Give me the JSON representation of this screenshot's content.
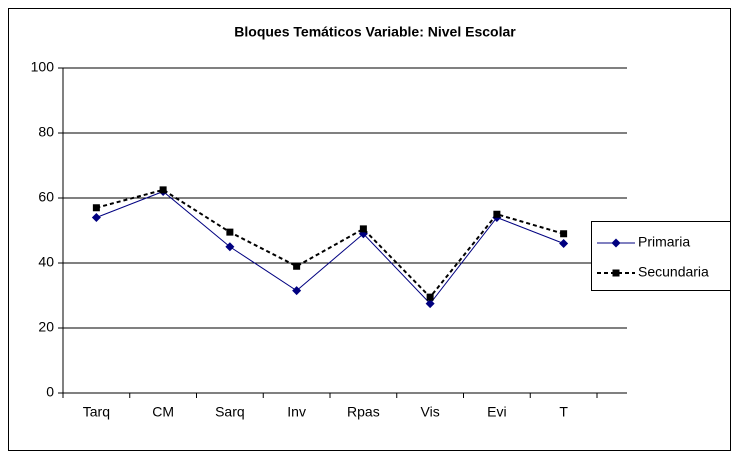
{
  "chart_data": {
    "type": "line",
    "title": "Bloques Temáticos   Variable: Nivel Escolar",
    "categories": [
      "Tarq",
      "CM",
      "Sarq",
      "Inv",
      "Rpas",
      "Vis",
      "Evi",
      "T"
    ],
    "series": [
      {
        "name": "Primaria",
        "color": "#000080",
        "dash": false,
        "marker": "diamond",
        "values": [
          54,
          62,
          45,
          31.5,
          49,
          27.5,
          54,
          46
        ]
      },
      {
        "name": "Secundaria",
        "color": "#000000",
        "dash": true,
        "marker": "square",
        "values": [
          57,
          62.5,
          49.5,
          39,
          50.5,
          29.5,
          55,
          49
        ]
      }
    ],
    "ylim": [
      0,
      100
    ],
    "yticks": [
      0,
      20,
      40,
      60,
      80,
      100
    ],
    "grid": true,
    "legend": "right"
  }
}
